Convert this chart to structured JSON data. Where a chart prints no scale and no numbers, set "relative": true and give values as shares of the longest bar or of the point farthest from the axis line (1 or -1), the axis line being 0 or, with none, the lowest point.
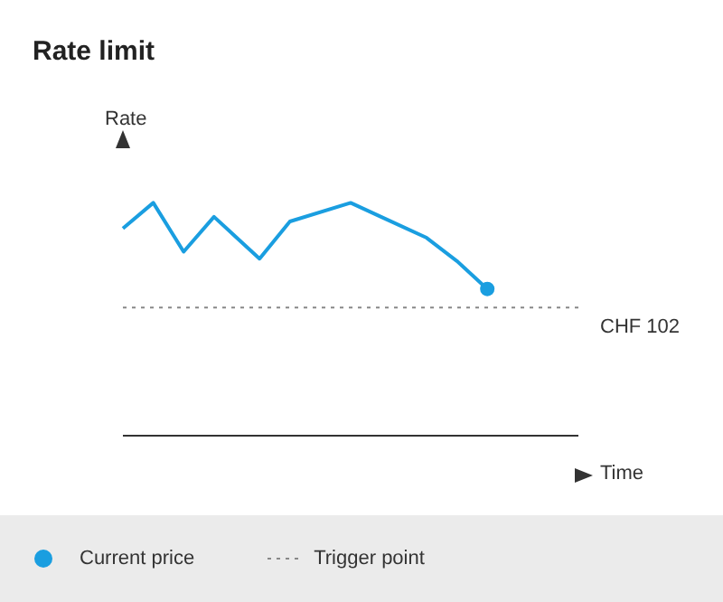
{
  "chart_data": {
    "type": "line",
    "title": "Rate limit",
    "xlabel": "Time",
    "ylabel": "Rate",
    "relative": true,
    "legend": "bottom",
    "annotations": [
      "Trigger point"
    ],
    "categories": [
      null,
      null,
      null,
      null,
      null,
      null,
      null,
      null,
      null,
      null,
      null,
      null,
      null,
      null,
      null,
      null,
      null,
      null,
      null,
      null,
      null,
      null,
      null,
      null,
      null,
      null,
      null,
      null,
      null,
      null,
      null
    ],
    "ref_lines": [
      {
        "axis": "y",
        "value": 0.55,
        "label": "CHF 102",
        "color": "#888888",
        "line_style": "dotted"
      }
    ],
    "series": [
      {
        "name": "Current price",
        "color": "#1a9ee0",
        "values": [
          0.89,
          null,
          1,
          null,
          0.79,
          null,
          0.94,
          null,
          null,
          0.76,
          null,
          0.92,
          null,
          null,
          null,
          1,
          null,
          0.94,
          null,
          null,
          0.85,
          null,
          0.75,
          null,
          0.63,
          null,
          null,
          null,
          null,
          null,
          null
        ]
      }
    ]
  }
}
